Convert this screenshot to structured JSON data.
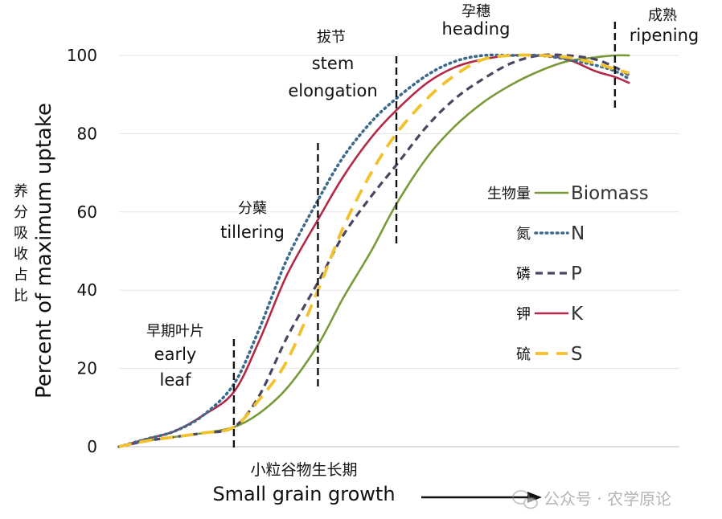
{
  "chart_data": {
    "type": "line",
    "title": "",
    "xlabel_cn": "小粒谷物生长期",
    "xlabel": "Small grain growth",
    "ylabel": "Percent of maximum uptake",
    "ylabel_cn": "养分吸收占比",
    "ylim": [
      0,
      100
    ],
    "yticks": [
      0,
      20,
      40,
      60,
      80,
      100
    ],
    "xlim": [
      0,
      100
    ],
    "grid": true,
    "stages": [
      {
        "cn": "早期叶片",
        "en": [
          "early",
          "leaf"
        ],
        "x": 20.5
      },
      {
        "cn": "分蘖",
        "en": [
          "tillering"
        ],
        "x": 35.5
      },
      {
        "cn": "拔节",
        "en": [
          "stem",
          "elongation"
        ],
        "x": 49.5
      },
      {
        "cn": "孕穗",
        "en": [
          "heading"
        ],
        "x": null
      },
      {
        "cn": "成熟",
        "en": [
          "ripening"
        ],
        "x": 88.5
      }
    ],
    "series": [
      {
        "key": "biomass",
        "name": "Biomass",
        "name_cn": "生物量",
        "color": "#7a9a3a",
        "style": "solid",
        "x": [
          0,
          5,
          10,
          15,
          20.5,
          25,
          30,
          35.5,
          40,
          45,
          49.5,
          55,
          60,
          65,
          70,
          75,
          80,
          85,
          88.5,
          91
        ],
        "y": [
          0,
          1.5,
          2.5,
          3.5,
          5,
          8.5,
          15,
          26,
          38,
          50,
          62,
          74,
          82,
          88,
          92.5,
          96,
          98.5,
          99.5,
          100,
          100
        ]
      },
      {
        "key": "n",
        "name": "N",
        "name_cn": "氮",
        "color": "#3c6a8a",
        "style": "dotted",
        "x": [
          0,
          5,
          10,
          15,
          20.5,
          25,
          30,
          35.5,
          40,
          45,
          49.5,
          55,
          60,
          65,
          70,
          75,
          80,
          85,
          88.5,
          91
        ],
        "y": [
          0,
          2,
          4,
          8,
          16,
          30,
          48,
          63,
          74,
          83,
          89,
          95,
          98.5,
          100,
          100,
          100,
          99,
          97.5,
          96,
          94
        ]
      },
      {
        "key": "p",
        "name": "P",
        "name_cn": "磷",
        "color": "#4a4560",
        "style": "dashed",
        "x": [
          0,
          5,
          10,
          15,
          20.5,
          25,
          30,
          35.5,
          40,
          45,
          49.5,
          55,
          60,
          65,
          70,
          75,
          80,
          85,
          88.5,
          91
        ],
        "y": [
          0,
          1.5,
          2.5,
          3.5,
          5,
          13,
          28,
          42,
          54,
          64,
          72,
          82,
          89,
          94,
          98,
          100,
          100,
          99,
          97,
          95
        ]
      },
      {
        "key": "k",
        "name": "K",
        "name_cn": "钾",
        "color": "#b22a48",
        "style": "solid",
        "x": [
          0,
          5,
          10,
          15,
          20.5,
          25,
          30,
          35.5,
          40,
          45,
          49.5,
          55,
          60,
          65,
          70,
          75,
          80,
          85,
          88.5,
          91
        ],
        "y": [
          0,
          2,
          4,
          8,
          14,
          27,
          44,
          58,
          69,
          79,
          86,
          93,
          97,
          99,
          100,
          100,
          99,
          96,
          94.5,
          93
        ]
      },
      {
        "key": "s",
        "name": "S",
        "name_cn": "硫",
        "color": "#f2c12e",
        "style": "longdash",
        "x": [
          0,
          5,
          10,
          15,
          20.5,
          25,
          30,
          35.5,
          40,
          45,
          49.5,
          55,
          60,
          65,
          70,
          75,
          80,
          85,
          88.5,
          91
        ],
        "y": [
          0,
          1.5,
          2.5,
          3.5,
          5,
          12,
          22,
          40,
          56,
          70,
          80,
          89,
          95,
          99,
          100,
          100,
          99.5,
          98,
          96.5,
          95.5
        ]
      }
    ]
  },
  "watermark": "公众号 · 农学原论"
}
